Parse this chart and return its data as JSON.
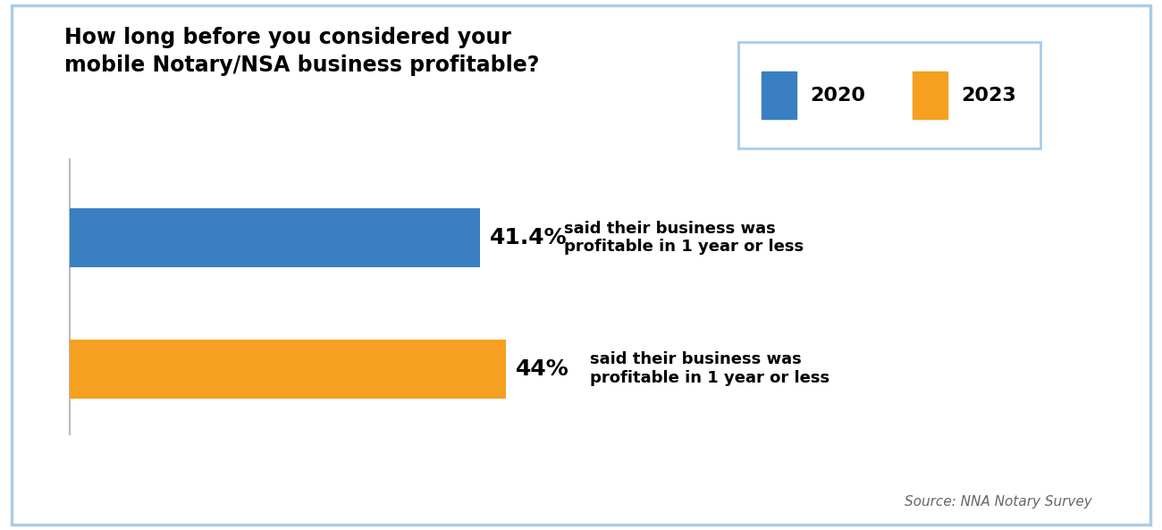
{
  "title_line1": "How long before you considered your",
  "title_line2": "mobile Notary/NSA business profitable?",
  "categories": [
    "2020",
    "2023"
  ],
  "values": [
    41.4,
    44.0
  ],
  "colors": [
    "#3a7fc1",
    "#f5a020"
  ],
  "legend_colors": [
    "#3a7fc1",
    "#f5a020"
  ],
  "legend_labels": [
    "2020",
    "2023"
  ],
  "bar_labels": [
    "41.4%",
    "44%"
  ],
  "bar_annotations": [
    "said their business was\nprofitable in 1 year or less",
    "said their business was\nprofitable in 1 year or less"
  ],
  "source_text": "Source: NNA Notary Survey",
  "background_color": "#ffffff",
  "border_color": "#aacce8",
  "xlim": [
    0,
    100
  ],
  "title_fontsize": 17,
  "bar_label_fontsize": 18,
  "annotation_fontsize": 13,
  "legend_fontsize": 16,
  "source_fontsize": 11
}
